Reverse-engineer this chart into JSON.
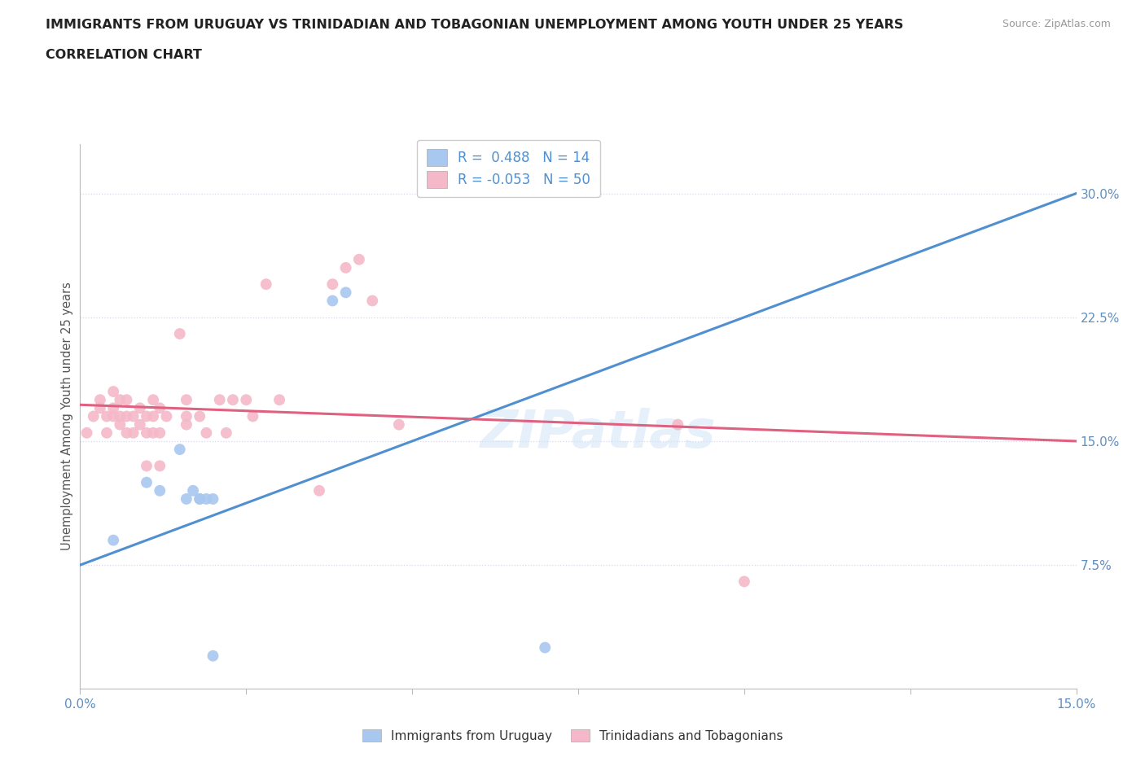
{
  "title_line1": "IMMIGRANTS FROM URUGUAY VS TRINIDADIAN AND TOBAGONIAN UNEMPLOYMENT AMONG YOUTH UNDER 25 YEARS",
  "title_line2": "CORRELATION CHART",
  "source_text": "Source: ZipAtlas.com",
  "ylabel": "Unemployment Among Youth under 25 years",
  "xlim": [
    0.0,
    0.15
  ],
  "ylim": [
    0.0,
    0.33
  ],
  "yticks": [
    0.075,
    0.15,
    0.225,
    0.3
  ],
  "ytick_labels": [
    "7.5%",
    "15.0%",
    "22.5%",
    "30.0%"
  ],
  "xticks": [
    0.0,
    0.025,
    0.05,
    0.075,
    0.1,
    0.125,
    0.15
  ],
  "xtick_labels": [
    "0.0%",
    "",
    "",
    "",
    "",
    "",
    "15.0%"
  ],
  "watermark": "ZIPatlas",
  "legend_r1": "R =  0.488   N = 14",
  "legend_r2": "R = -0.053   N = 50",
  "blue_color": "#a8c8f0",
  "pink_color": "#f4b8c8",
  "blue_line_color": "#5090d0",
  "pink_line_color": "#e06080",
  "blue_dash_color": "#b0c8e8",
  "grid_color": "#d8d8e8",
  "blue_points_x": [
    0.005,
    0.01,
    0.012,
    0.015,
    0.016,
    0.017,
    0.018,
    0.018,
    0.019,
    0.02,
    0.02,
    0.038,
    0.04,
    0.07
  ],
  "blue_points_y": [
    0.09,
    0.125,
    0.12,
    0.145,
    0.115,
    0.12,
    0.115,
    0.115,
    0.115,
    0.115,
    0.02,
    0.235,
    0.24,
    0.025
  ],
  "pink_points_x": [
    0.001,
    0.002,
    0.003,
    0.003,
    0.004,
    0.004,
    0.005,
    0.005,
    0.005,
    0.006,
    0.006,
    0.006,
    0.007,
    0.007,
    0.007,
    0.008,
    0.008,
    0.009,
    0.009,
    0.01,
    0.01,
    0.01,
    0.011,
    0.011,
    0.011,
    0.012,
    0.012,
    0.012,
    0.013,
    0.015,
    0.016,
    0.016,
    0.016,
    0.018,
    0.019,
    0.021,
    0.022,
    0.023,
    0.025,
    0.026,
    0.028,
    0.03,
    0.036,
    0.038,
    0.04,
    0.042,
    0.044,
    0.048,
    0.09,
    0.1
  ],
  "pink_points_y": [
    0.155,
    0.165,
    0.17,
    0.175,
    0.155,
    0.165,
    0.165,
    0.17,
    0.18,
    0.16,
    0.165,
    0.175,
    0.155,
    0.165,
    0.175,
    0.155,
    0.165,
    0.16,
    0.17,
    0.135,
    0.155,
    0.165,
    0.155,
    0.165,
    0.175,
    0.135,
    0.155,
    0.17,
    0.165,
    0.215,
    0.16,
    0.165,
    0.175,
    0.165,
    0.155,
    0.175,
    0.155,
    0.175,
    0.175,
    0.165,
    0.245,
    0.175,
    0.12,
    0.245,
    0.255,
    0.26,
    0.235,
    0.16,
    0.16,
    0.065
  ],
  "blue_line_x0": 0.0,
  "blue_line_y0": 0.075,
  "blue_line_x1": 0.15,
  "blue_line_y1": 0.3,
  "pink_line_x0": 0.0,
  "pink_line_y0": 0.172,
  "pink_line_x1": 0.15,
  "pink_line_y1": 0.15
}
